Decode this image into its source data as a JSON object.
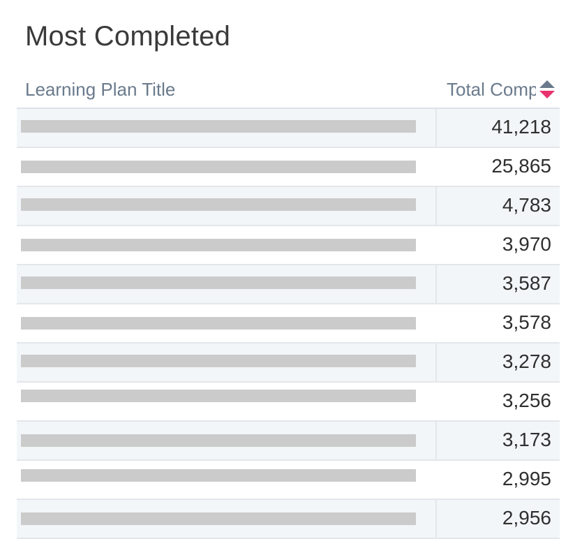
{
  "widget": {
    "title": "Most Completed"
  },
  "table": {
    "columns": [
      {
        "label": "Learning Plan Title"
      },
      {
        "label": "Total Completions",
        "sort": "descending"
      }
    ],
    "rows": [
      {
        "title": "",
        "total": "41,218"
      },
      {
        "title": "",
        "total": "25,865"
      },
      {
        "title": "",
        "total": "4,783"
      },
      {
        "title": "",
        "total": "3,970"
      },
      {
        "title": "",
        "total": "3,587"
      },
      {
        "title": "",
        "total": "3,578"
      },
      {
        "title": "",
        "total": "3,278"
      },
      {
        "title": "",
        "total": "3,256"
      },
      {
        "title": "",
        "total": "3,173"
      },
      {
        "title": "",
        "total": "2,995"
      },
      {
        "title": "",
        "total": "2,956"
      }
    ]
  },
  "colors": {
    "sort_active": "#e8336f",
    "sort_inactive": "#6a7a8c",
    "row_shade": "#f2f6f8",
    "redaction": "#cbcbcb"
  },
  "icons": {
    "sort": "sort-descending-icon"
  }
}
